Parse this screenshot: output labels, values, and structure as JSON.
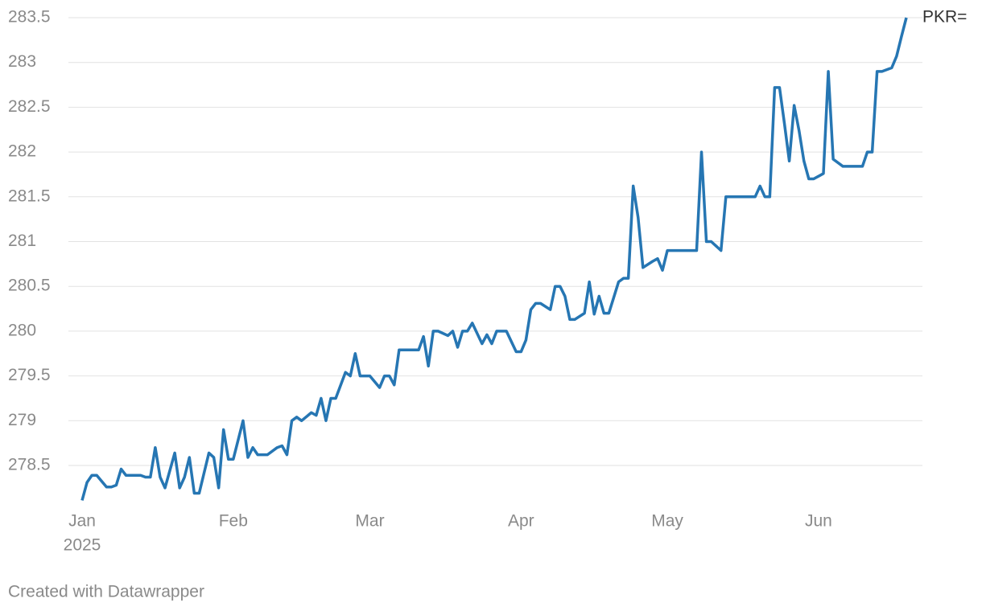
{
  "chart_data": {
    "type": "line",
    "x": [
      0,
      1,
      2,
      3,
      5,
      6,
      7,
      8,
      9,
      12,
      13,
      14,
      15,
      16,
      17,
      19,
      20,
      21,
      22,
      23,
      24,
      26,
      27,
      28,
      29,
      30,
      31,
      33,
      34,
      35,
      36,
      38,
      40,
      41,
      42,
      43,
      44,
      45,
      47,
      48,
      49,
      50,
      51,
      52,
      54,
      55,
      56,
      57,
      59,
      61,
      62,
      63,
      64,
      65,
      69,
      70,
      71,
      72,
      73,
      75,
      76,
      77,
      78,
      79,
      80,
      82,
      83,
      84,
      85,
      87,
      89,
      90,
      91,
      92,
      93,
      94,
      96,
      97,
      98,
      99,
      100,
      101,
      103,
      104,
      105,
      106,
      107,
      108,
      110,
      111,
      112,
      113,
      114,
      115,
      117,
      118,
      119,
      120,
      126,
      127,
      128,
      129,
      131,
      132,
      138,
      139,
      140,
      141,
      142,
      143,
      144,
      145,
      146,
      147,
      148,
      149,
      150,
      152,
      153,
      154,
      156,
      160,
      161,
      162,
      163,
      164,
      166,
      167,
      168,
      169
    ],
    "series": [
      {
        "name": "PKR=",
        "color": "#2676b3",
        "values": [
          278.11,
          278.31,
          278.39,
          278.39,
          278.26,
          278.26,
          278.28,
          278.46,
          278.39,
          278.39,
          278.37,
          278.37,
          278.7,
          278.37,
          278.25,
          278.64,
          278.25,
          278.37,
          278.59,
          278.19,
          278.19,
          278.64,
          278.59,
          278.25,
          278.9,
          278.57,
          278.57,
          279.0,
          278.59,
          278.7,
          278.62,
          278.62,
          278.7,
          278.72,
          278.62,
          279.0,
          279.04,
          279.0,
          279.09,
          279.06,
          279.25,
          279.0,
          279.25,
          279.25,
          279.54,
          279.5,
          279.75,
          279.5,
          279.5,
          279.37,
          279.5,
          279.5,
          279.4,
          279.79,
          279.79,
          279.94,
          279.61,
          280.0,
          280.0,
          279.95,
          280.0,
          279.82,
          280.0,
          280.0,
          280.09,
          279.86,
          279.96,
          279.86,
          280.0,
          280.0,
          279.77,
          279.77,
          279.9,
          280.24,
          280.31,
          280.31,
          280.24,
          280.5,
          280.5,
          280.39,
          280.13,
          280.13,
          280.2,
          280.55,
          280.19,
          280.39,
          280.2,
          280.2,
          280.55,
          280.59,
          280.59,
          281.62,
          281.27,
          280.71,
          280.78,
          280.81,
          280.68,
          280.9,
          280.9,
          282.0,
          281.0,
          281.0,
          280.9,
          281.5,
          281.5,
          281.62,
          281.5,
          281.5,
          282.72,
          282.72,
          282.32,
          281.9,
          282.52,
          282.24,
          281.9,
          281.7,
          281.7,
          281.76,
          282.9,
          281.92,
          281.84,
          281.84,
          282.0,
          282.0,
          282.9,
          282.9,
          282.94,
          283.07,
          283.29,
          283.5
        ]
      }
    ],
    "xlim": [
      0,
      169
    ],
    "xticks": [
      {
        "value": 0,
        "label": "Jan"
      },
      {
        "value": 31,
        "label": "Feb"
      },
      {
        "value": 59,
        "label": "Mar"
      },
      {
        "value": 90,
        "label": "Apr"
      },
      {
        "value": 120,
        "label": "May"
      },
      {
        "value": 151,
        "label": "Jun"
      }
    ],
    "x_year_label": "2025",
    "ylim": [
      278.1,
      283.5
    ],
    "yticks": [
      278.5,
      279,
      279.5,
      280,
      280.5,
      281,
      281.5,
      282,
      282.5,
      283,
      283.5
    ],
    "grid": true,
    "footer": "Created with Datawrapper"
  }
}
